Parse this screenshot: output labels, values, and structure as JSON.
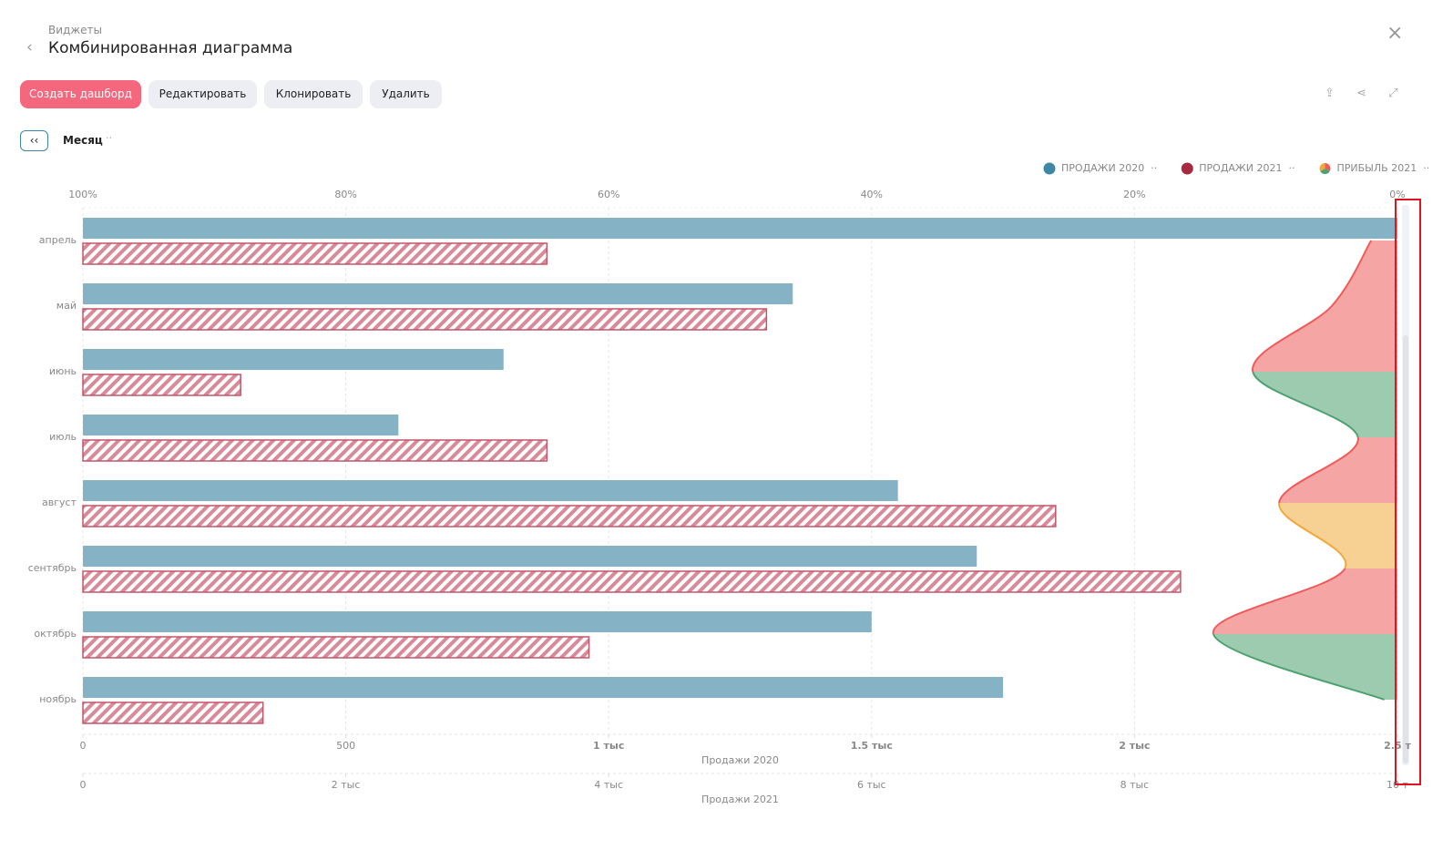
{
  "header": {
    "breadcrumb": "Виджеты",
    "title": "Комбинированная диаграмма"
  },
  "toolbar": {
    "buttons": [
      "Создать дашборд",
      "Редактировать",
      "Клонировать",
      "Удалить"
    ]
  },
  "filter": {
    "label": "Месяц"
  },
  "chart_data": {
    "type": "bar",
    "categories": [
      "апрель",
      "май",
      "июнь",
      "июль",
      "август",
      "сентябрь",
      "октябрь",
      "ноябрь"
    ],
    "series": [
      {
        "name": "ПРОДАЖИ 2020",
        "color": "#86b2c6",
        "legend_color": "#3d86a6",
        "axis": "x",
        "values": [
          2500,
          1350,
          800,
          600,
          1550,
          1700,
          1500,
          1750
        ]
      },
      {
        "name": "ПРОДАЖИ 2021",
        "color": "#c0566a",
        "legend_color": "#a8283f",
        "axis": "x2",
        "hatch": true,
        "values": [
          3530,
          5200,
          1200,
          3530,
          7400,
          8350,
          3850,
          1370
        ]
      },
      {
        "name": "ПРИБЫЛЬ 2021",
        "type": "area",
        "axis": "x3",
        "values": [
          2,
          5,
          11,
          3,
          9,
          4,
          14,
          1
        ],
        "colors": [
          "#ef5b5b",
          "#ef5b5b",
          "#4ca16f",
          "#ef5b5b",
          "#f0a93a",
          "#ef5b5b",
          "#4ca16f"
        ]
      }
    ],
    "xlim": [
      0,
      2500
    ],
    "xticks": [
      0,
      500,
      {
        "value": 1000,
        "label": "1 тыс"
      },
      {
        "value": 1500,
        "label": "1.5 тыс"
      },
      {
        "value": 2000,
        "label": "2 тыс"
      },
      {
        "value": 2500,
        "label": "2.5 т"
      }
    ],
    "xlabel": "Продажи 2020",
    "x2lim": [
      0,
      10000
    ],
    "x2ticks": [
      0,
      {
        "value": 2000,
        "label": "2 тыс"
      },
      {
        "value": 4000,
        "label": "4 тыс"
      },
      {
        "value": 6000,
        "label": "6 тыс"
      },
      {
        "value": 8000,
        "label": "8 тыс"
      },
      {
        "value": 10000,
        "label": "10 т"
      }
    ],
    "x2label": "Продажи 2021",
    "x3lim": [
      100,
      0
    ],
    "x3ticks": [
      {
        "value": 100,
        "label": "100%"
      },
      {
        "value": 80,
        "label": "80%"
      },
      {
        "value": 60,
        "label": "60%"
      },
      {
        "value": 40,
        "label": "40%"
      },
      {
        "value": 20,
        "label": "20%"
      },
      {
        "value": 0,
        "label": "0%"
      }
    ],
    "grid": true,
    "legend": "top-right"
  }
}
